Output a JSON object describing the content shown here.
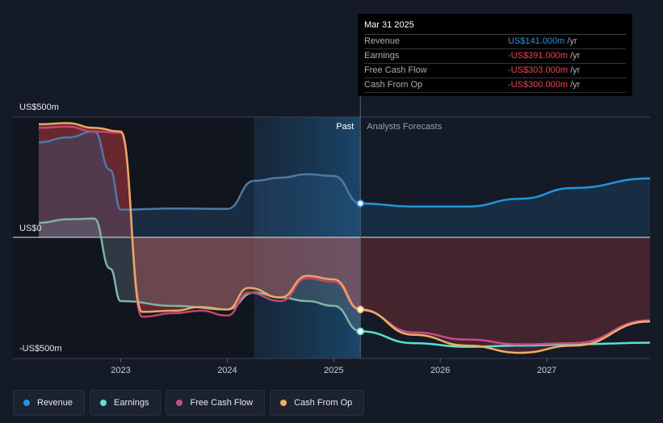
{
  "tooltip": {
    "date": "Mar 31 2025",
    "rows": [
      {
        "label": "Revenue",
        "value": "US$141.000m",
        "unit": "/yr",
        "color": "#2394df"
      },
      {
        "label": "Earnings",
        "value": "-US$391.000m",
        "unit": "/yr",
        "color": "#e8434b"
      },
      {
        "label": "Free Cash Flow",
        "value": "-US$303.000m",
        "unit": "/yr",
        "color": "#e8434b"
      },
      {
        "label": "Cash From Op",
        "value": "-US$300.000m",
        "unit": "/yr",
        "color": "#e8434b"
      }
    ]
  },
  "legend": [
    {
      "label": "Revenue",
      "color": "#2394df"
    },
    {
      "label": "Earnings",
      "color": "#5ce1d0"
    },
    {
      "label": "Free Cash Flow",
      "color": "#c94a8c"
    },
    {
      "label": "Cash From Op",
      "color": "#eeb060"
    }
  ],
  "chart_data": {
    "type": "line",
    "xlim": [
      2022.23,
      2027.97
    ],
    "ylim": [
      -500,
      500
    ],
    "y_tick_labels": [
      {
        "value": 500,
        "label": "US$500m"
      },
      {
        "value": 0,
        "label": "US$0"
      },
      {
        "value": -500,
        "label": "-US$500m"
      }
    ],
    "x_ticks": [
      {
        "value": 2023,
        "label": "2023"
      },
      {
        "value": 2024,
        "label": "2024"
      },
      {
        "value": 2025,
        "label": "2025"
      },
      {
        "value": 2026,
        "label": "2026"
      },
      {
        "value": 2027,
        "label": "2027"
      }
    ],
    "divider_x": 2025.25,
    "highlight_start_x": 2024.25,
    "region_labels": {
      "past": "Past",
      "forecast": "Analysts Forecasts"
    },
    "series": [
      {
        "name": "Revenue",
        "color": "#2394df",
        "past": [
          [
            2022.23,
            395
          ],
          [
            2022.5,
            415
          ],
          [
            2022.75,
            440
          ],
          [
            2022.9,
            280
          ],
          [
            2023.0,
            115
          ],
          [
            2023.5,
            120
          ],
          [
            2024.0,
            118
          ],
          [
            2024.25,
            235
          ],
          [
            2024.5,
            248
          ],
          [
            2024.75,
            262
          ],
          [
            2025.0,
            255
          ],
          [
            2025.25,
            141
          ]
        ],
        "forecast": [
          [
            2025.25,
            141
          ],
          [
            2025.75,
            128
          ],
          [
            2026.25,
            128
          ],
          [
            2026.75,
            160
          ],
          [
            2027.25,
            205
          ],
          [
            2027.97,
            245
          ]
        ]
      },
      {
        "name": "Earnings",
        "color": "#5ce1d0",
        "past": [
          [
            2022.23,
            60
          ],
          [
            2022.5,
            75
          ],
          [
            2022.75,
            78
          ],
          [
            2022.9,
            -130
          ],
          [
            2023.0,
            -265
          ],
          [
            2023.5,
            -285
          ],
          [
            2024.0,
            -300
          ],
          [
            2024.25,
            -230
          ],
          [
            2024.5,
            -250
          ],
          [
            2024.75,
            -265
          ],
          [
            2025.0,
            -285
          ],
          [
            2025.25,
            -391
          ]
        ],
        "forecast": [
          [
            2025.25,
            -391
          ],
          [
            2025.75,
            -440
          ],
          [
            2026.25,
            -455
          ],
          [
            2026.75,
            -450
          ],
          [
            2027.25,
            -445
          ],
          [
            2027.97,
            -438
          ]
        ]
      },
      {
        "name": "Free Cash Flow",
        "color": "#c94a8c",
        "past": [
          [
            2022.23,
            455
          ],
          [
            2022.5,
            460
          ],
          [
            2022.75,
            440
          ],
          [
            2023.0,
            435
          ],
          [
            2023.2,
            -330
          ],
          [
            2023.5,
            -315
          ],
          [
            2023.75,
            -305
          ],
          [
            2024.0,
            -325
          ],
          [
            2024.2,
            -230
          ],
          [
            2024.5,
            -265
          ],
          [
            2024.75,
            -170
          ],
          [
            2025.0,
            -185
          ],
          [
            2025.25,
            -303
          ]
        ],
        "forecast": [
          [
            2025.25,
            -303
          ],
          [
            2025.75,
            -395
          ],
          [
            2026.25,
            -425
          ],
          [
            2026.75,
            -445
          ],
          [
            2027.25,
            -440
          ],
          [
            2027.97,
            -345
          ]
        ]
      },
      {
        "name": "Cash From Op",
        "color": "#eeb060",
        "past": [
          [
            2022.23,
            470
          ],
          [
            2022.5,
            475
          ],
          [
            2022.75,
            455
          ],
          [
            2023.0,
            440
          ],
          [
            2023.2,
            -310
          ],
          [
            2023.5,
            -305
          ],
          [
            2023.75,
            -290
          ],
          [
            2024.0,
            -300
          ],
          [
            2024.2,
            -210
          ],
          [
            2024.5,
            -250
          ],
          [
            2024.75,
            -160
          ],
          [
            2025.0,
            -175
          ],
          [
            2025.25,
            -300
          ]
        ],
        "forecast": [
          [
            2025.25,
            -300
          ],
          [
            2025.75,
            -405
          ],
          [
            2026.25,
            -450
          ],
          [
            2026.75,
            -480
          ],
          [
            2027.25,
            -450
          ],
          [
            2027.97,
            -350
          ]
        ]
      }
    ]
  }
}
